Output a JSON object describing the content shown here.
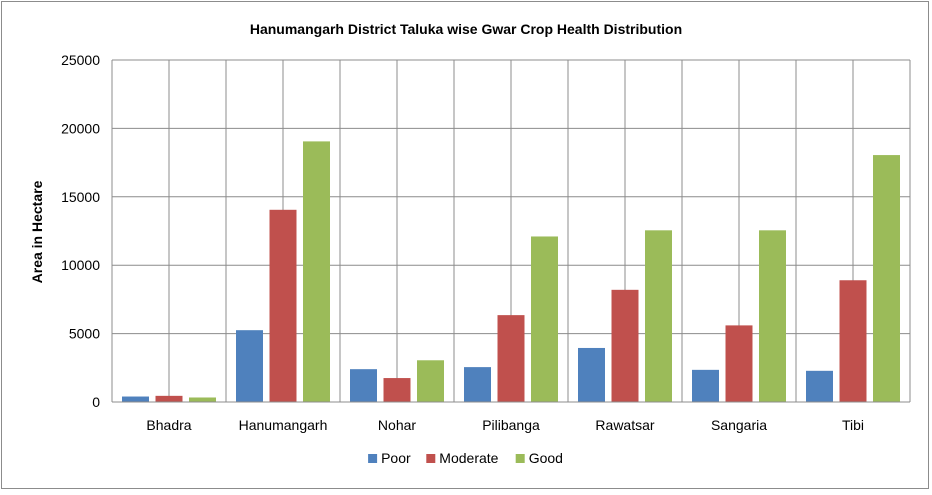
{
  "chart_data": {
    "type": "bar",
    "title": "Hanumangarh District Taluka wise Gwar Crop Health Distribution",
    "xlabel": "",
    "ylabel": "Area in Hectare",
    "ylim": [
      0,
      25000
    ],
    "yticks": [
      0,
      5000,
      10000,
      15000,
      20000,
      25000
    ],
    "grid": true,
    "legend_position": "bottom",
    "categories": [
      "Bhadra",
      "Hanumangarh",
      "Nohar",
      "Pilibanga",
      "Rawatsar",
      "Sangaria",
      "Tibi"
    ],
    "series": [
      {
        "name": "Poor",
        "color": "#4f81bd",
        "values": [
          400,
          5250,
          2400,
          2550,
          3950,
          2350,
          2280
        ]
      },
      {
        "name": "Moderate",
        "color": "#c0504d",
        "values": [
          450,
          14050,
          1750,
          6350,
          8200,
          5600,
          8900
        ]
      },
      {
        "name": "Good",
        "color": "#9bbb59",
        "values": [
          330,
          19050,
          3050,
          12100,
          12550,
          12550,
          18050
        ]
      }
    ]
  }
}
